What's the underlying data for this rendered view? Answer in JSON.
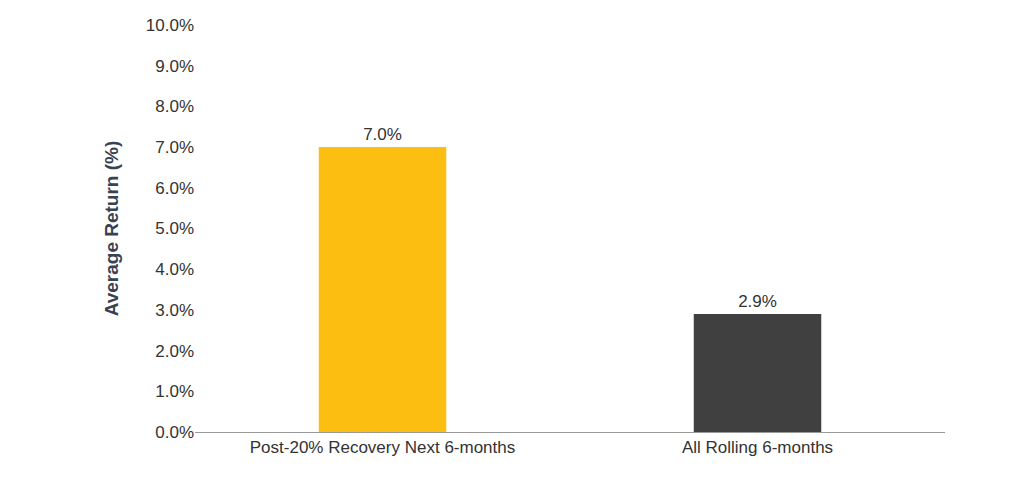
{
  "chart_data": {
    "type": "bar",
    "y_label": "Average Return (%)",
    "categories": [
      "Post-20% Recovery Next 6-months",
      "All Rolling 6-months"
    ],
    "values": [
      7.0,
      2.9
    ],
    "value_labels": [
      "7.0%",
      "2.9%"
    ],
    "colors": [
      "#FDBE12",
      "#404040"
    ],
    "data_labels": true,
    "grid": false,
    "ylim": [
      0,
      10
    ],
    "yticks": [
      {
        "value": 0,
        "label": "0.0%"
      },
      {
        "value": 1,
        "label": "1.0%"
      },
      {
        "value": 2,
        "label": "2.0%"
      },
      {
        "value": 3,
        "label": "3.0%"
      },
      {
        "value": 4,
        "label": "4.0%"
      },
      {
        "value": 5,
        "label": "5.0%"
      },
      {
        "value": 6,
        "label": "6.0%"
      },
      {
        "value": 7,
        "label": "7.0%"
      },
      {
        "value": 8,
        "label": "8.0%"
      },
      {
        "value": 9,
        "label": "9.0%"
      },
      {
        "value": 10,
        "label": "10.0%"
      }
    ]
  }
}
